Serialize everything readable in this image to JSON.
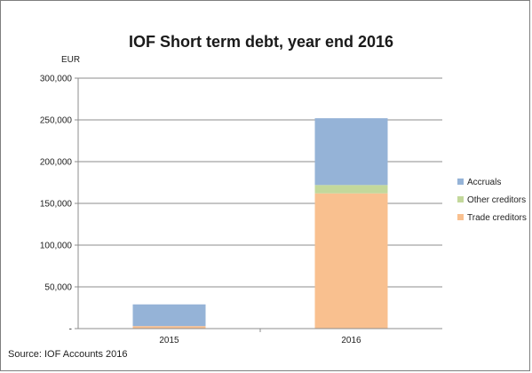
{
  "chart_data": {
    "type": "bar",
    "stacked": true,
    "title": "IOF Short term debt, year end 2016",
    "ylabel": "EUR",
    "xlabel": "",
    "categories": [
      "2015",
      "2016"
    ],
    "ylim": [
      0,
      300000
    ],
    "yticks": [
      0,
      50000,
      100000,
      150000,
      200000,
      250000,
      300000
    ],
    "ytick_labels": [
      "-",
      "50,000",
      "100,000",
      "150,000",
      "200,000",
      "250,000",
      "300,000"
    ],
    "grid": true,
    "legend_position": "right",
    "series": [
      {
        "name": "Trade creditors",
        "color": "#f9c08f",
        "values": [
          3000,
          162000
        ]
      },
      {
        "name": "Other creditors",
        "color": "#c3d89b",
        "values": [
          0,
          10000
        ]
      },
      {
        "name": "Accruals",
        "color": "#95b3d7",
        "values": [
          26000,
          80000
        ]
      }
    ]
  },
  "footer": {
    "source": "Source: IOF Accounts 2016"
  }
}
